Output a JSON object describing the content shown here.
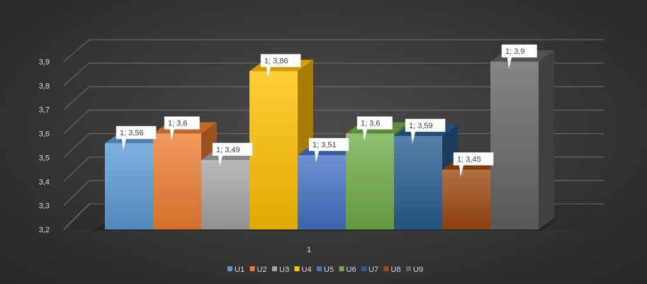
{
  "chart_data": {
    "type": "bar",
    "categories": [
      "1"
    ],
    "y_ticks": [
      "3,2",
      "3,3",
      "3,4",
      "3,5",
      "3,6",
      "3,7",
      "3,8",
      "3,9"
    ],
    "ylim": [
      3.2,
      3.9
    ],
    "grid": true,
    "legend_position": "bottom",
    "series": [
      {
        "name": "U1",
        "value": 3.56,
        "label": "1; 3,56",
        "color": "#5b9bd5"
      },
      {
        "name": "U2",
        "value": 3.6,
        "label": "1; 3,6",
        "color": "#ed7d31"
      },
      {
        "name": "U3",
        "value": 3.49,
        "label": "1; 3,49",
        "color": "#a5a5a5"
      },
      {
        "name": "U4",
        "value": 3.86,
        "label": "1; 3,86",
        "color": "#ffc000"
      },
      {
        "name": "U5",
        "value": 3.51,
        "label": "1; 3,51",
        "color": "#4472c4"
      },
      {
        "name": "U6",
        "value": 3.6,
        "label": "1; 3,6",
        "color": "#70ad47"
      },
      {
        "name": "U7",
        "value": 3.59,
        "label": "1; 3,59",
        "color": "#255e91"
      },
      {
        "name": "U8",
        "value": 3.45,
        "label": "1; 3,45",
        "color": "#9e480e"
      },
      {
        "name": "U9",
        "value": 3.9,
        "label": "1; 3,9",
        "color": "#636363"
      }
    ]
  }
}
